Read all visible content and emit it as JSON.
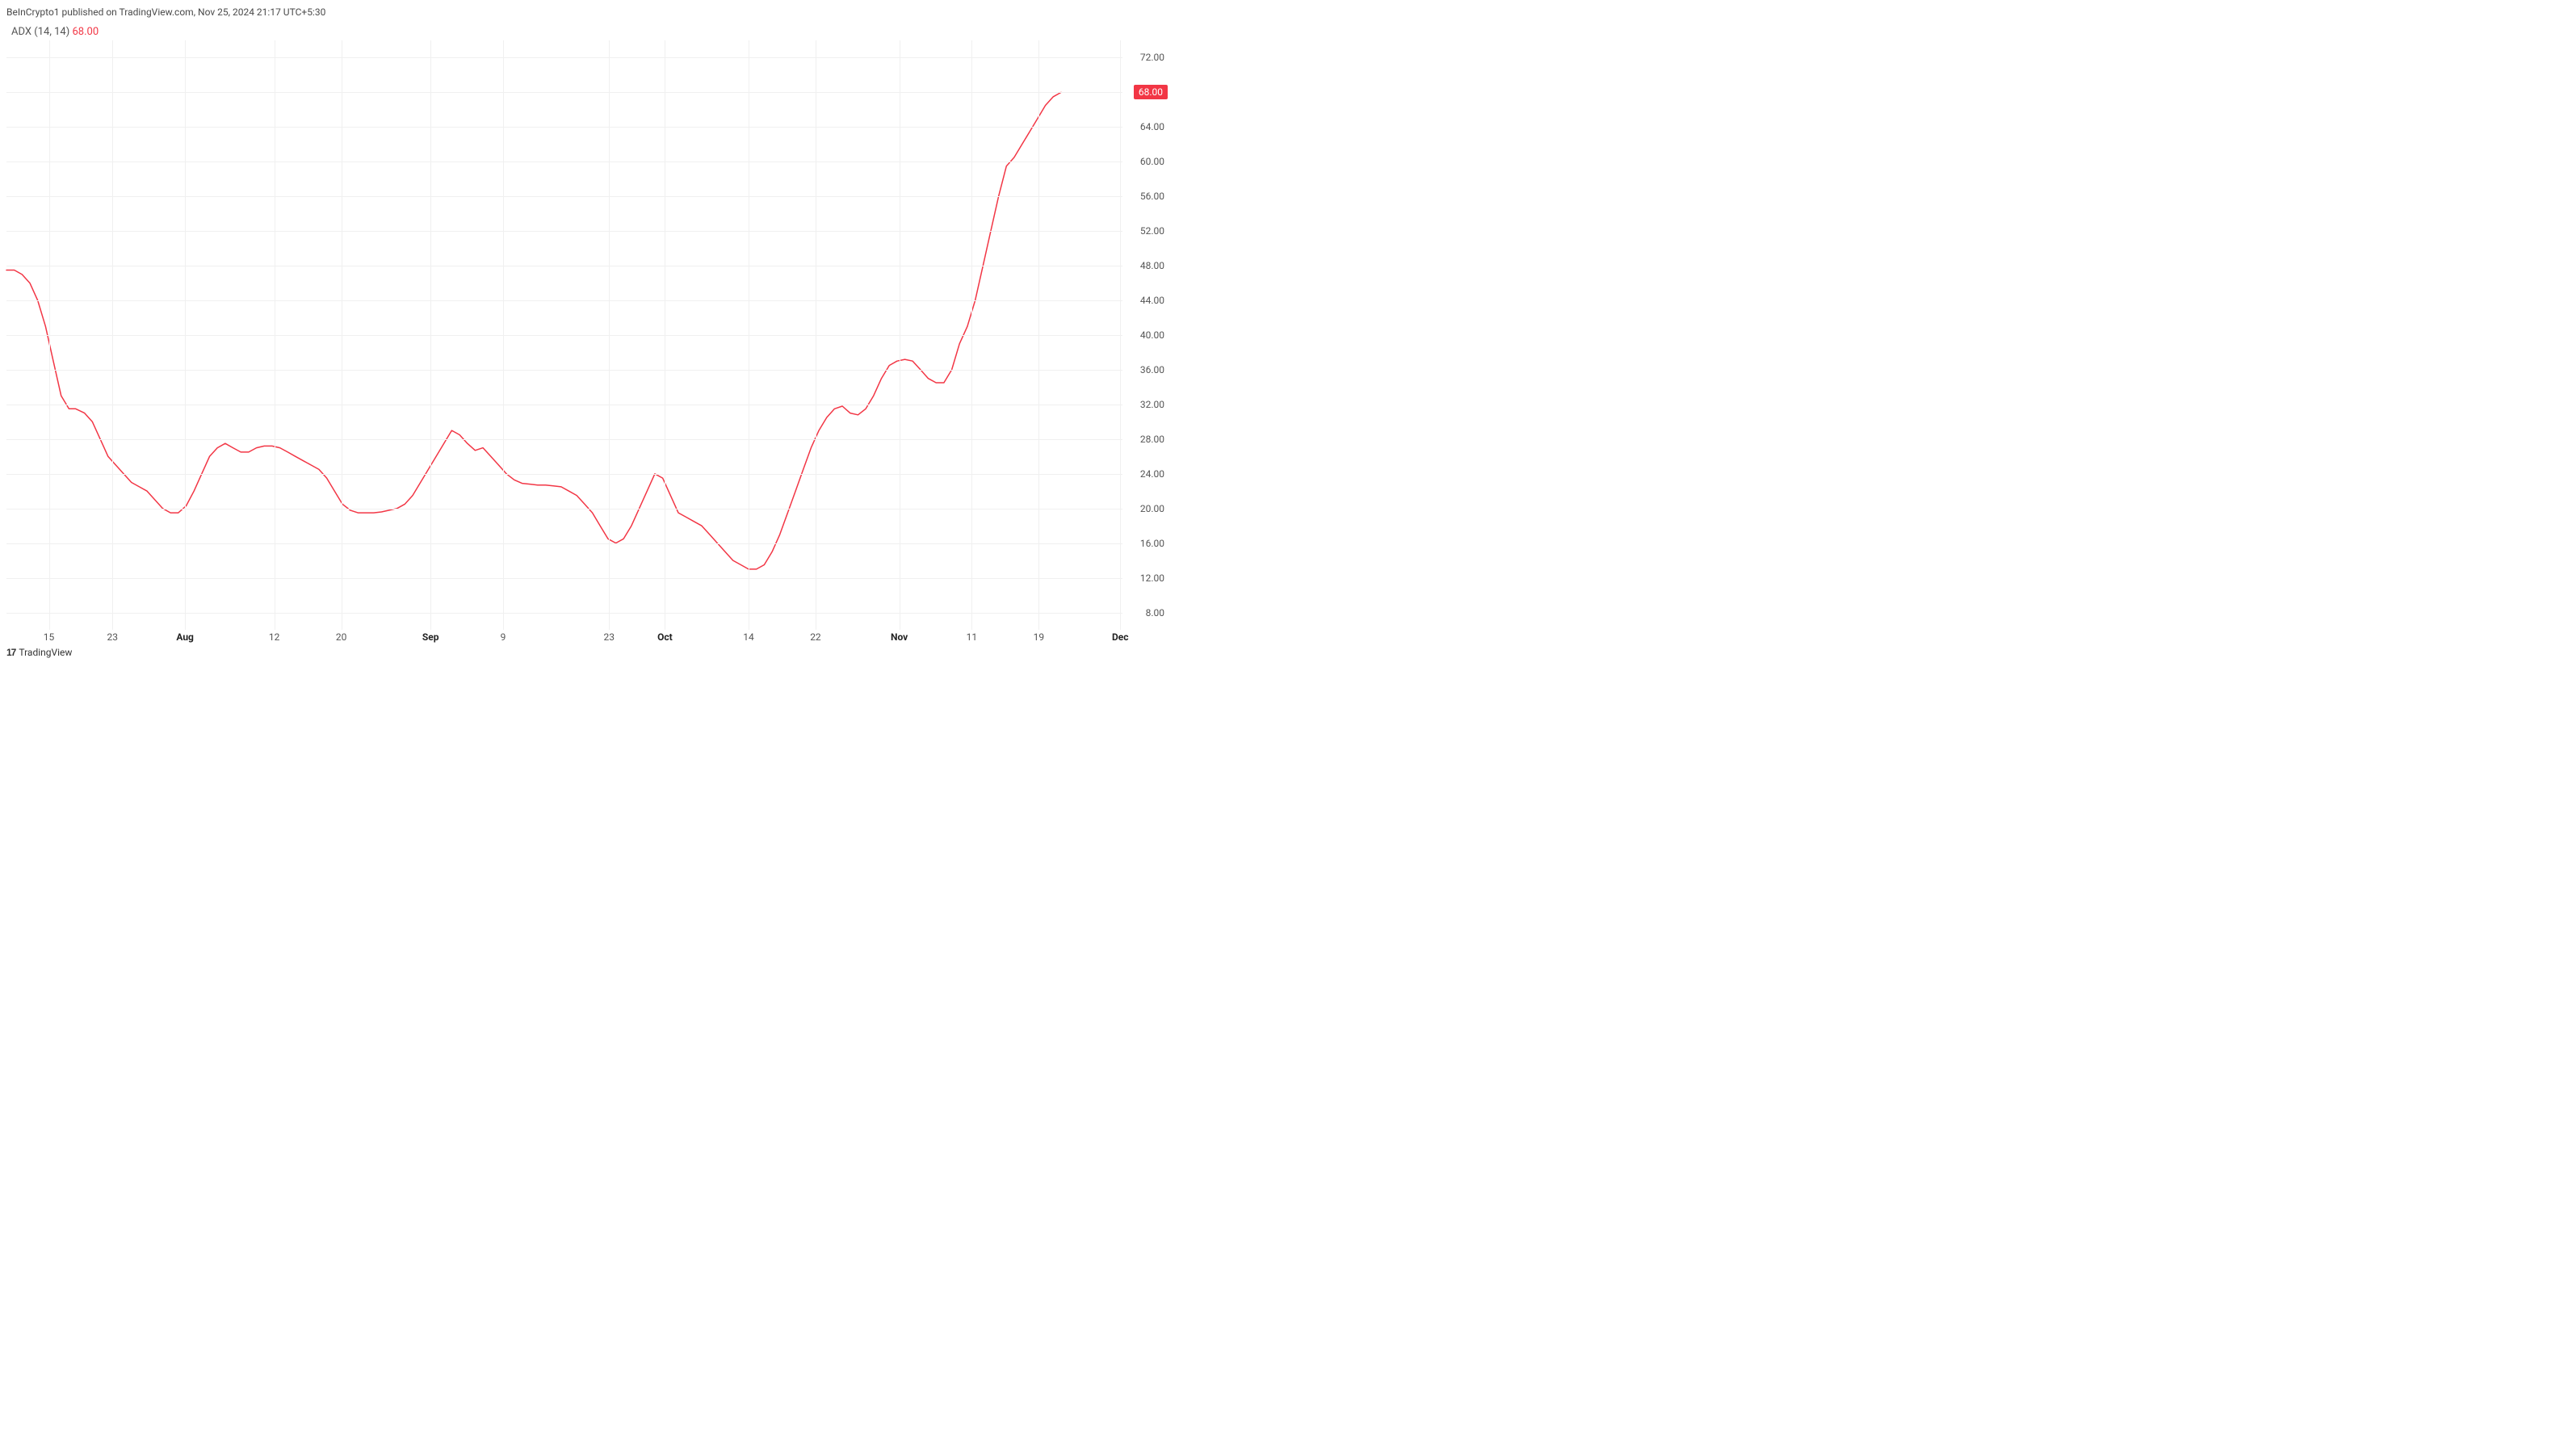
{
  "header": "BeInCrypto1 published on TradingView.com, Nov 25, 2024 21:17 UTC+5:30",
  "indicator": {
    "name": "ADX",
    "params": "(14, 14)",
    "value": "68.00"
  },
  "footer_brand": "TradingView",
  "chart": {
    "type": "line",
    "line_color": "#f23645",
    "line_width": 1.5,
    "background_color": "#ffffff",
    "grid_color": "#f0f0f0",
    "ylim": [
      6,
      74
    ],
    "y_ticks": [
      8.0,
      12.0,
      16.0,
      20.0,
      24.0,
      28.0,
      32.0,
      36.0,
      40.0,
      44.0,
      48.0,
      52.0,
      56.0,
      60.0,
      64.0,
      68.0,
      72.0
    ],
    "y_tick_labels": [
      "8.00",
      "12.00",
      "16.00",
      "20.00",
      "24.00",
      "28.00",
      "32.00",
      "36.00",
      "40.00",
      "44.00",
      "48.00",
      "52.00",
      "56.00",
      "60.00",
      "64.00",
      "68.00",
      "72.00"
    ],
    "current_marker": {
      "value": 68.0,
      "label": "68.00"
    },
    "x_ticks": [
      {
        "pos": 0.038,
        "label": "15",
        "bold": false
      },
      {
        "pos": 0.095,
        "label": "23",
        "bold": false
      },
      {
        "pos": 0.16,
        "label": "Aug",
        "bold": true
      },
      {
        "pos": 0.24,
        "label": "12",
        "bold": false
      },
      {
        "pos": 0.3,
        "label": "20",
        "bold": false
      },
      {
        "pos": 0.38,
        "label": "Sep",
        "bold": true
      },
      {
        "pos": 0.445,
        "label": "9",
        "bold": false
      },
      {
        "pos": 0.54,
        "label": "23",
        "bold": false
      },
      {
        "pos": 0.59,
        "label": "Oct",
        "bold": true
      },
      {
        "pos": 0.665,
        "label": "14",
        "bold": false
      },
      {
        "pos": 0.725,
        "label": "22",
        "bold": false
      },
      {
        "pos": 0.8,
        "label": "Nov",
        "bold": true
      },
      {
        "pos": 0.865,
        "label": "11",
        "bold": false
      },
      {
        "pos": 0.925,
        "label": "19",
        "bold": false
      },
      {
        "pos": 0.998,
        "label": "Dec",
        "bold": true
      }
    ],
    "series": [
      [
        0.0,
        47.5
      ],
      [
        0.007,
        47.5
      ],
      [
        0.014,
        47.0
      ],
      [
        0.021,
        46.0
      ],
      [
        0.028,
        44.0
      ],
      [
        0.035,
        41.0
      ],
      [
        0.042,
        37.0
      ],
      [
        0.049,
        33.0
      ],
      [
        0.056,
        31.5
      ],
      [
        0.062,
        31.5
      ],
      [
        0.07,
        31.0
      ],
      [
        0.077,
        30.0
      ],
      [
        0.084,
        28.0
      ],
      [
        0.091,
        26.0
      ],
      [
        0.098,
        25.0
      ],
      [
        0.105,
        24.0
      ],
      [
        0.112,
        23.0
      ],
      [
        0.119,
        22.5
      ],
      [
        0.126,
        22.0
      ],
      [
        0.133,
        21.0
      ],
      [
        0.14,
        20.0
      ],
      [
        0.147,
        19.5
      ],
      [
        0.154,
        19.5
      ],
      [
        0.161,
        20.3
      ],
      [
        0.168,
        22.0
      ],
      [
        0.175,
        24.0
      ],
      [
        0.182,
        26.0
      ],
      [
        0.189,
        27.0
      ],
      [
        0.196,
        27.5
      ],
      [
        0.203,
        27.0
      ],
      [
        0.21,
        26.5
      ],
      [
        0.217,
        26.5
      ],
      [
        0.224,
        27.0
      ],
      [
        0.231,
        27.2
      ],
      [
        0.238,
        27.2
      ],
      [
        0.245,
        27.0
      ],
      [
        0.252,
        26.5
      ],
      [
        0.259,
        26.0
      ],
      [
        0.266,
        25.5
      ],
      [
        0.273,
        25.0
      ],
      [
        0.28,
        24.5
      ],
      [
        0.287,
        23.5
      ],
      [
        0.294,
        22.0
      ],
      [
        0.301,
        20.5
      ],
      [
        0.308,
        19.8
      ],
      [
        0.315,
        19.5
      ],
      [
        0.322,
        19.5
      ],
      [
        0.329,
        19.5
      ],
      [
        0.336,
        19.6
      ],
      [
        0.343,
        19.8
      ],
      [
        0.35,
        20.0
      ],
      [
        0.357,
        20.5
      ],
      [
        0.364,
        21.5
      ],
      [
        0.371,
        23.0
      ],
      [
        0.378,
        24.5
      ],
      [
        0.385,
        26.0
      ],
      [
        0.392,
        27.5
      ],
      [
        0.399,
        29.0
      ],
      [
        0.406,
        28.5
      ],
      [
        0.413,
        27.5
      ],
      [
        0.42,
        26.7
      ],
      [
        0.427,
        27.0
      ],
      [
        0.434,
        26.0
      ],
      [
        0.441,
        25.0
      ],
      [
        0.448,
        24.0
      ],
      [
        0.455,
        23.3
      ],
      [
        0.462,
        22.9
      ],
      [
        0.469,
        22.8
      ],
      [
        0.476,
        22.7
      ],
      [
        0.483,
        22.7
      ],
      [
        0.49,
        22.6
      ],
      [
        0.497,
        22.5
      ],
      [
        0.504,
        22.0
      ],
      [
        0.511,
        21.5
      ],
      [
        0.518,
        20.5
      ],
      [
        0.525,
        19.5
      ],
      [
        0.532,
        18.0
      ],
      [
        0.539,
        16.5
      ],
      [
        0.546,
        16.0
      ],
      [
        0.553,
        16.5
      ],
      [
        0.56,
        18.0
      ],
      [
        0.567,
        20.0
      ],
      [
        0.574,
        22.0
      ],
      [
        0.581,
        24.0
      ],
      [
        0.588,
        23.5
      ],
      [
        0.595,
        21.5
      ],
      [
        0.602,
        19.5
      ],
      [
        0.609,
        19.0
      ],
      [
        0.616,
        18.5
      ],
      [
        0.623,
        18.0
      ],
      [
        0.63,
        17.0
      ],
      [
        0.637,
        16.0
      ],
      [
        0.644,
        15.0
      ],
      [
        0.651,
        14.0
      ],
      [
        0.658,
        13.5
      ],
      [
        0.665,
        13.0
      ],
      [
        0.672,
        13.0
      ],
      [
        0.679,
        13.5
      ],
      [
        0.686,
        15.0
      ],
      [
        0.693,
        17.0
      ],
      [
        0.7,
        19.5
      ],
      [
        0.707,
        22.0
      ],
      [
        0.714,
        24.5
      ],
      [
        0.721,
        27.0
      ],
      [
        0.728,
        29.0
      ],
      [
        0.735,
        30.5
      ],
      [
        0.742,
        31.5
      ],
      [
        0.749,
        31.8
      ],
      [
        0.756,
        31.0
      ],
      [
        0.763,
        30.8
      ],
      [
        0.77,
        31.5
      ],
      [
        0.777,
        33.0
      ],
      [
        0.784,
        35.0
      ],
      [
        0.791,
        36.5
      ],
      [
        0.798,
        37.0
      ],
      [
        0.805,
        37.2
      ],
      [
        0.812,
        37.0
      ],
      [
        0.819,
        36.0
      ],
      [
        0.826,
        35.0
      ],
      [
        0.833,
        34.5
      ],
      [
        0.84,
        34.5
      ],
      [
        0.847,
        36.0
      ],
      [
        0.854,
        39.0
      ],
      [
        0.861,
        41.0
      ],
      [
        0.868,
        44.0
      ],
      [
        0.875,
        48.0
      ],
      [
        0.882,
        52.0
      ],
      [
        0.889,
        56.0
      ],
      [
        0.896,
        59.5
      ],
      [
        0.903,
        60.5
      ],
      [
        0.91,
        62.0
      ],
      [
        0.917,
        63.5
      ],
      [
        0.924,
        65.0
      ],
      [
        0.931,
        66.5
      ],
      [
        0.938,
        67.5
      ],
      [
        0.945,
        68.0
      ]
    ]
  }
}
